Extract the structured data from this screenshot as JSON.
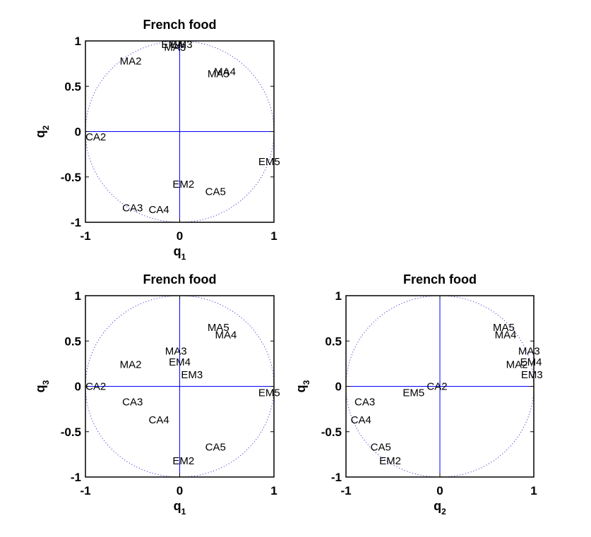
{
  "chart_data": [
    {
      "type": "scatter",
      "title": "French food",
      "xlabel": "q",
      "xlabel_sub": "1",
      "ylabel": "q",
      "ylabel_sub": "2",
      "xlim": [
        -1,
        1
      ],
      "ylim": [
        -1,
        1
      ],
      "xticks": [
        "-1",
        "0",
        "1"
      ],
      "yticks": [
        "-1",
        "-0.5",
        "0",
        "0.5",
        "1"
      ],
      "circle": true,
      "points": [
        {
          "label": "EM4",
          "x": -0.08,
          "y": 0.96
        },
        {
          "label": "EM3",
          "x": 0.02,
          "y": 0.96
        },
        {
          "label": "MA3",
          "x": -0.05,
          "y": 0.93
        },
        {
          "label": "MA2",
          "x": -0.52,
          "y": 0.78
        },
        {
          "label": "MA4",
          "x": 0.48,
          "y": 0.66
        },
        {
          "label": "MA5",
          "x": 0.41,
          "y": 0.64
        },
        {
          "label": "CA2",
          "x": -0.89,
          "y": -0.06
        },
        {
          "label": "EM5",
          "x": 0.95,
          "y": -0.33
        },
        {
          "label": "EM2",
          "x": 0.04,
          "y": -0.58
        },
        {
          "label": "CA5",
          "x": 0.38,
          "y": -0.66
        },
        {
          "label": "CA3",
          "x": -0.5,
          "y": -0.84
        },
        {
          "label": "CA4",
          "x": -0.22,
          "y": -0.86
        }
      ]
    },
    {
      "type": "scatter",
      "title": "French food",
      "xlabel": "q",
      "xlabel_sub": "1",
      "ylabel": "q",
      "ylabel_sub": "3",
      "xlim": [
        -1,
        1
      ],
      "ylim": [
        -1,
        1
      ],
      "xticks": [
        "-1",
        "0",
        "1"
      ],
      "yticks": [
        "-1",
        "-0.5",
        "0",
        "0.5",
        "1"
      ],
      "circle": true,
      "points": [
        {
          "label": "MA5",
          "x": 0.41,
          "y": 0.65
        },
        {
          "label": "MA4",
          "x": 0.49,
          "y": 0.57
        },
        {
          "label": "MA3",
          "x": -0.04,
          "y": 0.39
        },
        {
          "label": "EM4",
          "x": 0.0,
          "y": 0.27
        },
        {
          "label": "MA2",
          "x": -0.52,
          "y": 0.24
        },
        {
          "label": "EM3",
          "x": 0.13,
          "y": 0.13
        },
        {
          "label": "CA2",
          "x": -0.89,
          "y": 0.0
        },
        {
          "label": "EM5",
          "x": 0.95,
          "y": -0.07
        },
        {
          "label": "CA3",
          "x": -0.5,
          "y": -0.17
        },
        {
          "label": "CA4",
          "x": -0.22,
          "y": -0.37
        },
        {
          "label": "CA5",
          "x": 0.38,
          "y": -0.67
        },
        {
          "label": "EM2",
          "x": 0.04,
          "y": -0.82
        }
      ]
    },
    {
      "type": "scatter",
      "title": "French food",
      "xlabel": "q",
      "xlabel_sub": "2",
      "ylabel": "q",
      "ylabel_sub": "3",
      "xlim": [
        -1,
        1
      ],
      "ylim": [
        -1,
        1
      ],
      "xticks": [
        "-1",
        "0",
        "1"
      ],
      "yticks": [
        "-1",
        "-0.5",
        "0",
        "0.5",
        "1"
      ],
      "circle": true,
      "points": [
        {
          "label": "MA5",
          "x": 0.68,
          "y": 0.65
        },
        {
          "label": "MA4",
          "x": 0.7,
          "y": 0.57
        },
        {
          "label": "MA3",
          "x": 0.95,
          "y": 0.39
        },
        {
          "label": "EM4",
          "x": 0.97,
          "y": 0.27
        },
        {
          "label": "MA2",
          "x": 0.82,
          "y": 0.24
        },
        {
          "label": "EM3",
          "x": 0.98,
          "y": 0.13
        },
        {
          "label": "CA2",
          "x": -0.03,
          "y": 0.0
        },
        {
          "label": "EM5",
          "x": -0.28,
          "y": -0.07
        },
        {
          "label": "CA3",
          "x": -0.8,
          "y": -0.17
        },
        {
          "label": "CA4",
          "x": -0.84,
          "y": -0.37
        },
        {
          "label": "CA5",
          "x": -0.63,
          "y": -0.67
        },
        {
          "label": "EM2",
          "x": -0.53,
          "y": -0.82
        }
      ]
    }
  ]
}
